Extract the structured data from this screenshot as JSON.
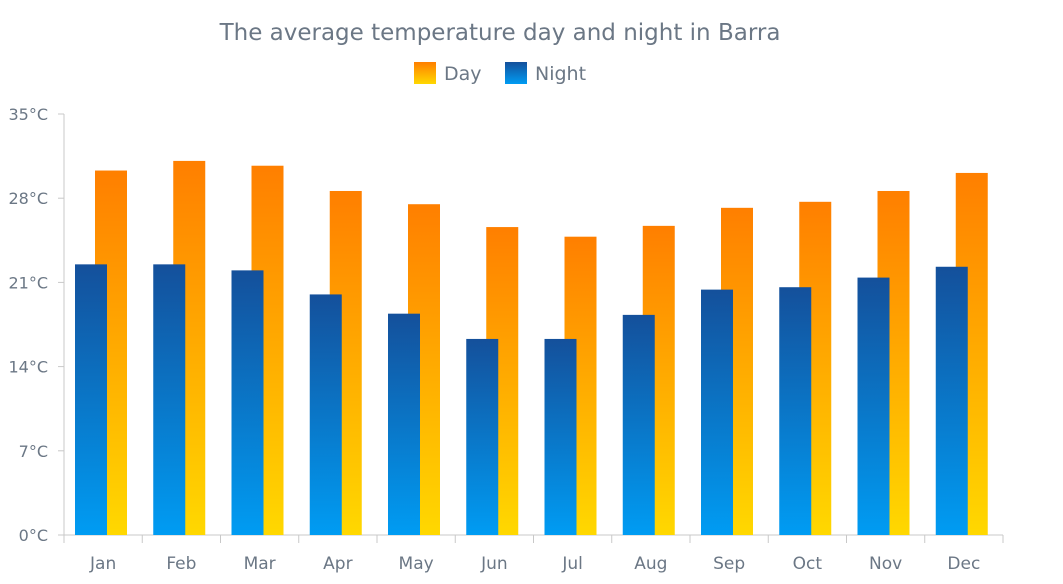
{
  "chart_data": {
    "type": "bar",
    "title": "The average temperature day and night in Barra",
    "categories": [
      "Jan",
      "Feb",
      "Mar",
      "Apr",
      "May",
      "Jun",
      "Jul",
      "Aug",
      "Sep",
      "Oct",
      "Nov",
      "Dec"
    ],
    "series": [
      {
        "name": "Day",
        "values": [
          30.3,
          31.1,
          30.7,
          28.6,
          27.5,
          25.6,
          24.8,
          25.7,
          27.2,
          27.7,
          28.6,
          30.1
        ],
        "color_top": "#ff7f00",
        "color_bottom": "#ffd800"
      },
      {
        "name": "Night",
        "values": [
          22.5,
          22.5,
          22.0,
          20.0,
          18.4,
          16.3,
          16.3,
          18.3,
          20.4,
          20.6,
          21.4,
          22.3
        ],
        "color_top": "#14509b",
        "color_bottom": "#009cf3"
      }
    ],
    "y_ticks": [
      "0°C",
      "7°C",
      "14°C",
      "21°C",
      "28°C",
      "35°C"
    ],
    "ylim": [
      0,
      35
    ],
    "y_unit": "°C",
    "legend_position": "top-center",
    "grid": false
  },
  "colors": {
    "title": "#6b7785",
    "tick_label": "#6b7785",
    "axis_line": "#c8c8c8"
  }
}
